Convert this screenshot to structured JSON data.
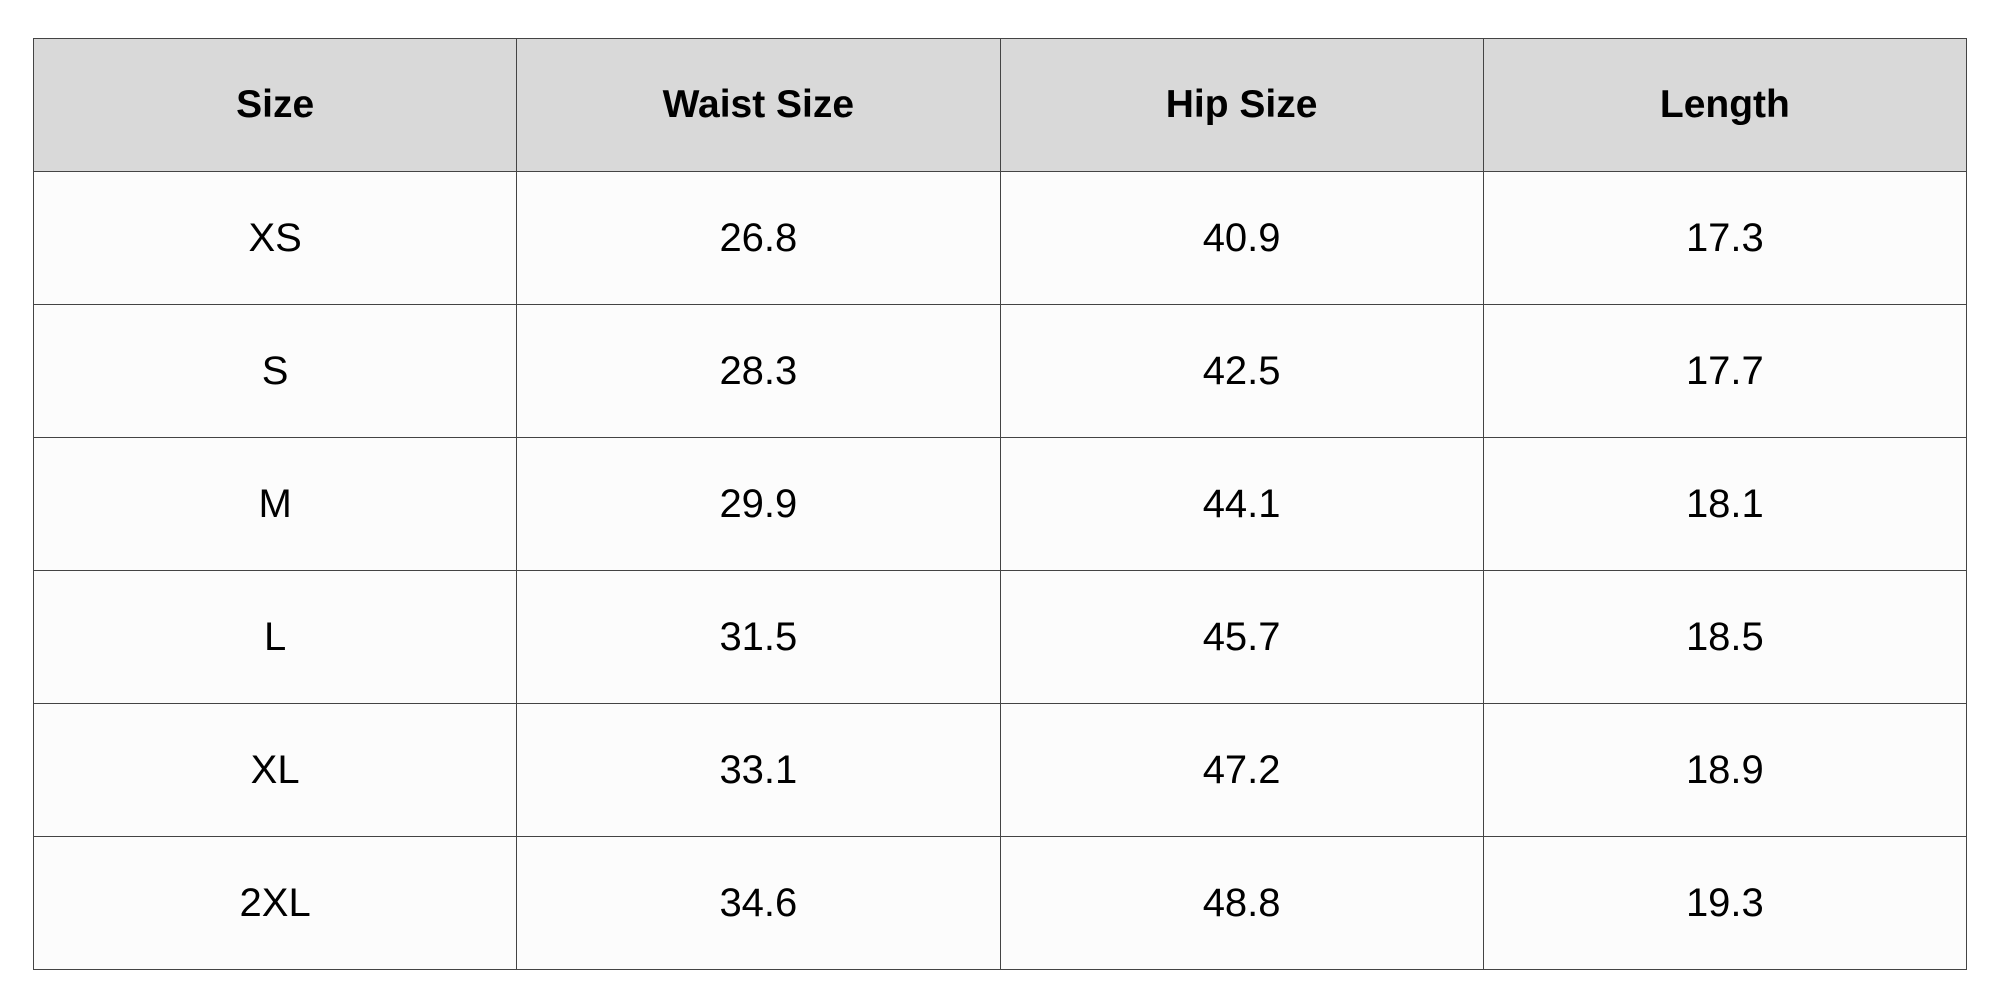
{
  "table": {
    "header": [
      "Size",
      "Waist Size",
      "Hip Size",
      "Length"
    ],
    "rows": [
      [
        "XS",
        26.8,
        40.9,
        17.3
      ],
      [
        "S",
        28.3,
        42.5,
        17.7
      ],
      [
        "M",
        29.9,
        44.1,
        18.1
      ],
      [
        "L",
        31.5,
        45.7,
        18.5
      ],
      [
        "XL",
        33.1,
        47.2,
        18.9
      ],
      [
        "2XL",
        34.6,
        48.8,
        19.3
      ]
    ]
  }
}
